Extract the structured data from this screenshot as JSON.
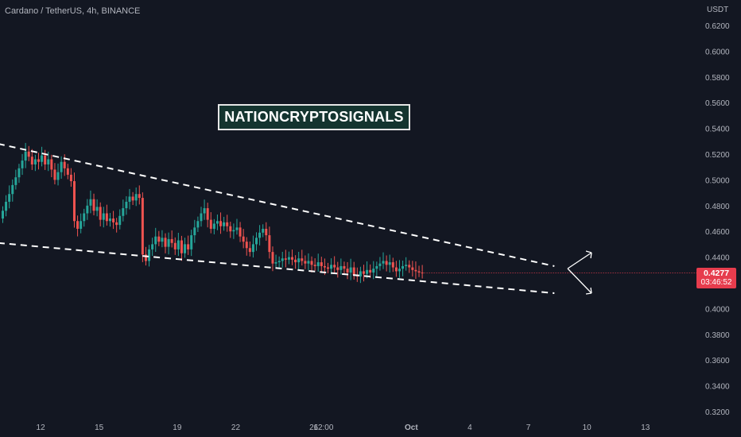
{
  "header": {
    "symbol": "Cardano / TetherUS, 4h, BINANCE"
  },
  "watermark": {
    "text": "NATIONCRYPTOSIGNALS"
  },
  "current_price": {
    "value": "0.4277",
    "countdown": "03:46:52",
    "color": "#e63c4d"
  },
  "colors": {
    "background": "#131722",
    "up": "#26a69a",
    "down": "#ef5350",
    "axis_text": "#b2b5be",
    "trendline": "#ffffff"
  },
  "chart_data": {
    "type": "candlestick",
    "title": "Cardano / TetherUS, 4h, BINANCE",
    "y_axis": {
      "unit": "USDT",
      "range": [
        0.31,
        0.63
      ],
      "ticks": [
        "0.6200",
        "0.6000",
        "0.5800",
        "0.5600",
        "0.5400",
        "0.5200",
        "0.5000",
        "0.4800",
        "0.4600",
        "0.4400",
        "0.4200",
        "0.4000",
        "0.3800",
        "0.3600",
        "0.3400",
        "0.3200"
      ]
    },
    "x_axis": {
      "ticks": [
        {
          "label": "12",
          "i": 12
        },
        {
          "label": "15",
          "i": 30
        },
        {
          "label": "19",
          "i": 54
        },
        {
          "label": "22",
          "i": 72
        },
        {
          "label": "26",
          "i": 96
        },
        {
          "label": "12:00",
          "i": 99
        },
        {
          "label": "Oct",
          "i": 126
        },
        {
          "label": "4",
          "i": 144
        },
        {
          "label": "7",
          "i": 162
        },
        {
          "label": "10",
          "i": 180
        },
        {
          "label": "13",
          "i": 198
        }
      ]
    },
    "candles_close": [
      0.476,
      0.483,
      0.489,
      0.496,
      0.502,
      0.509,
      0.515,
      0.522,
      0.518,
      0.512,
      0.516,
      0.514,
      0.519,
      0.512,
      0.516,
      0.508,
      0.5,
      0.506,
      0.514,
      0.509,
      0.504,
      0.499,
      0.468,
      0.462,
      0.468,
      0.474,
      0.48,
      0.485,
      0.476,
      0.479,
      0.469,
      0.474,
      0.468,
      0.47,
      0.467,
      0.465,
      0.472,
      0.478,
      0.483,
      0.487,
      0.484,
      0.489,
      0.486,
      0.442,
      0.437,
      0.446,
      0.45,
      0.456,
      0.452,
      0.455,
      0.448,
      0.454,
      0.451,
      0.446,
      0.453,
      0.443,
      0.45,
      0.446,
      0.457,
      0.463,
      0.468,
      0.474,
      0.478,
      0.469,
      0.462,
      0.466,
      0.468,
      0.464,
      0.467,
      0.464,
      0.46,
      0.461,
      0.463,
      0.456,
      0.452,
      0.447,
      0.444,
      0.45,
      0.455,
      0.459,
      0.462,
      0.457,
      0.444,
      0.435,
      0.436,
      0.437,
      0.439,
      0.438,
      0.44,
      0.438,
      0.436,
      0.439,
      0.437,
      0.435,
      0.437,
      0.434,
      0.433,
      0.436,
      0.433,
      0.432,
      0.431,
      0.434,
      0.432,
      0.43,
      0.433,
      0.431,
      0.428,
      0.432,
      0.426,
      0.425,
      0.429,
      0.427,
      0.43,
      0.428,
      0.431,
      0.433,
      0.435,
      0.437,
      0.434,
      0.436,
      0.432,
      0.429,
      0.431,
      0.433,
      0.434,
      0.432,
      0.43,
      0.429,
      0.428,
      0.4277
    ],
    "open_first": 0.47,
    "current_price": 0.4277,
    "trendlines": [
      {
        "name": "upper",
        "from": {
          "i": -1,
          "y": 0.528
        },
        "to": {
          "i": 170,
          "y": 0.433
        }
      },
      {
        "name": "lower",
        "from": {
          "i": -1,
          "y": 0.451
        },
        "to": {
          "i": 170,
          "y": 0.412
        }
      }
    ],
    "grid": false
  }
}
